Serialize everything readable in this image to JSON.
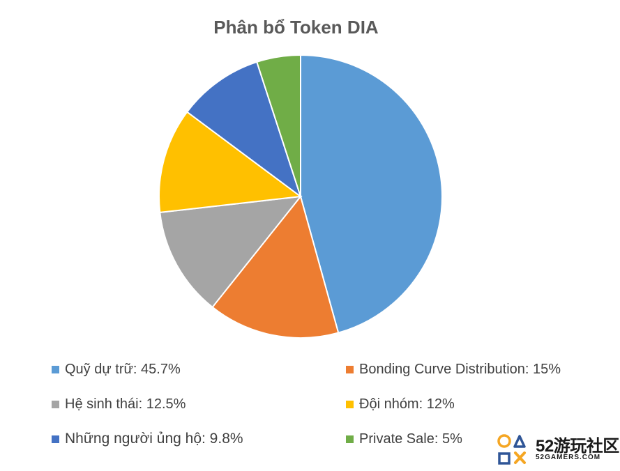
{
  "chart_data": {
    "type": "pie",
    "title": "Phân bổ Token DIA",
    "legend_position": "bottom",
    "slices": [
      {
        "label": "Quỹ dự trữ: 45.7%",
        "value": 45.7,
        "color": "#5B9BD5"
      },
      {
        "label": "Bonding Curve Distribution: 15%",
        "value": 15,
        "color": "#ED7D31"
      },
      {
        "label": "Hệ sinh thái: 12.5%",
        "value": 12.5,
        "color": "#A5A5A5"
      },
      {
        "label": "Đội nhóm: 12%",
        "value": 12,
        "color": "#FFC000"
      },
      {
        "label": "Những người ủng hộ: 9.8%",
        "value": 9.8,
        "color": "#4472C4"
      },
      {
        "label": "Private Sale: 5%",
        "value": 5,
        "color": "#70AD47"
      }
    ]
  },
  "watermark": {
    "main": "52游玩社区",
    "sub": "52GAMERS.COM",
    "colors": {
      "orange": "#F5A623",
      "blue": "#2F5597"
    }
  }
}
